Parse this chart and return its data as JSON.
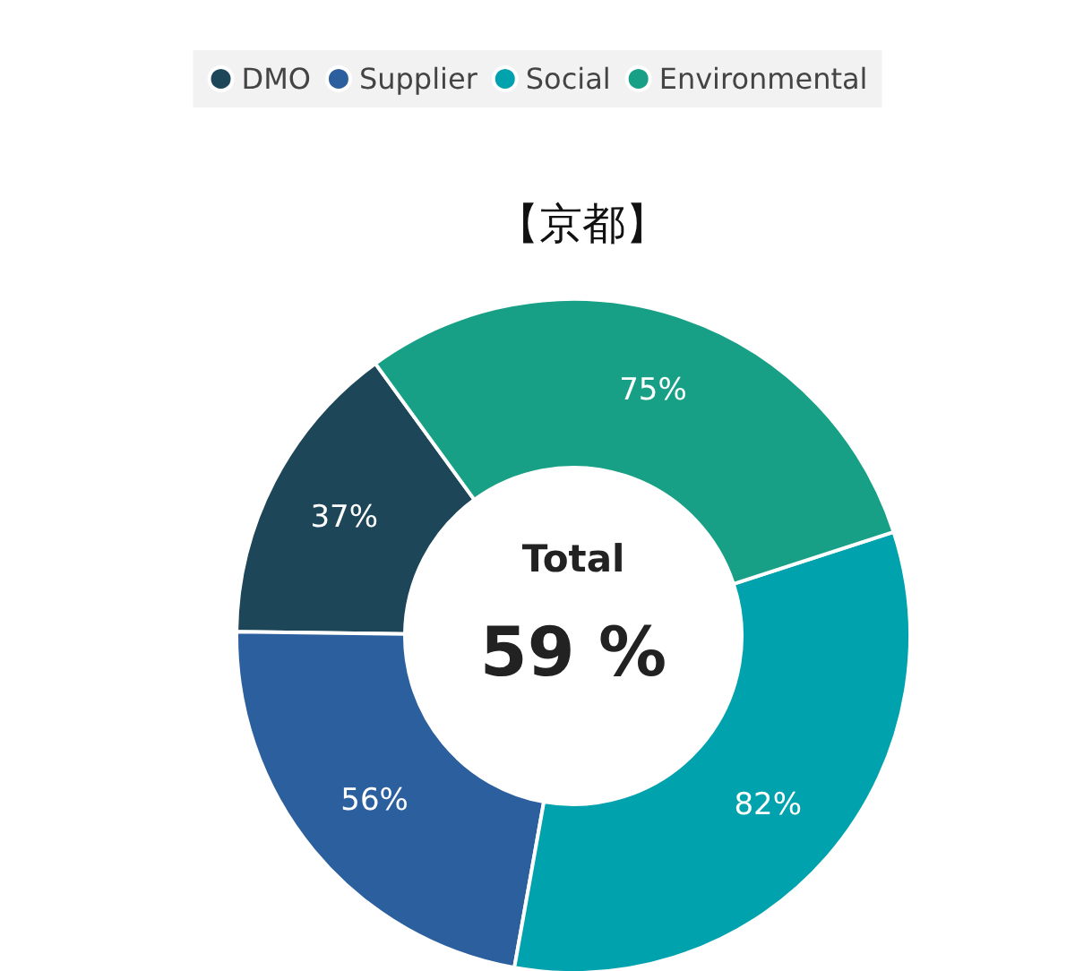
{
  "chart_data": {
    "type": "donut",
    "title": "【京都】",
    "categories": [
      "DMO",
      "Supplier",
      "Social",
      "Environmental"
    ],
    "values": [
      37,
      56,
      82,
      75
    ],
    "colors": [
      "#1d4659",
      "#2b5f9e",
      "#00a2ad",
      "#17a085"
    ],
    "value_labels": [
      "37%",
      "56%",
      "82%",
      "75%"
    ],
    "annotations": [
      "Total",
      "59 %"
    ],
    "legend": "top"
  }
}
